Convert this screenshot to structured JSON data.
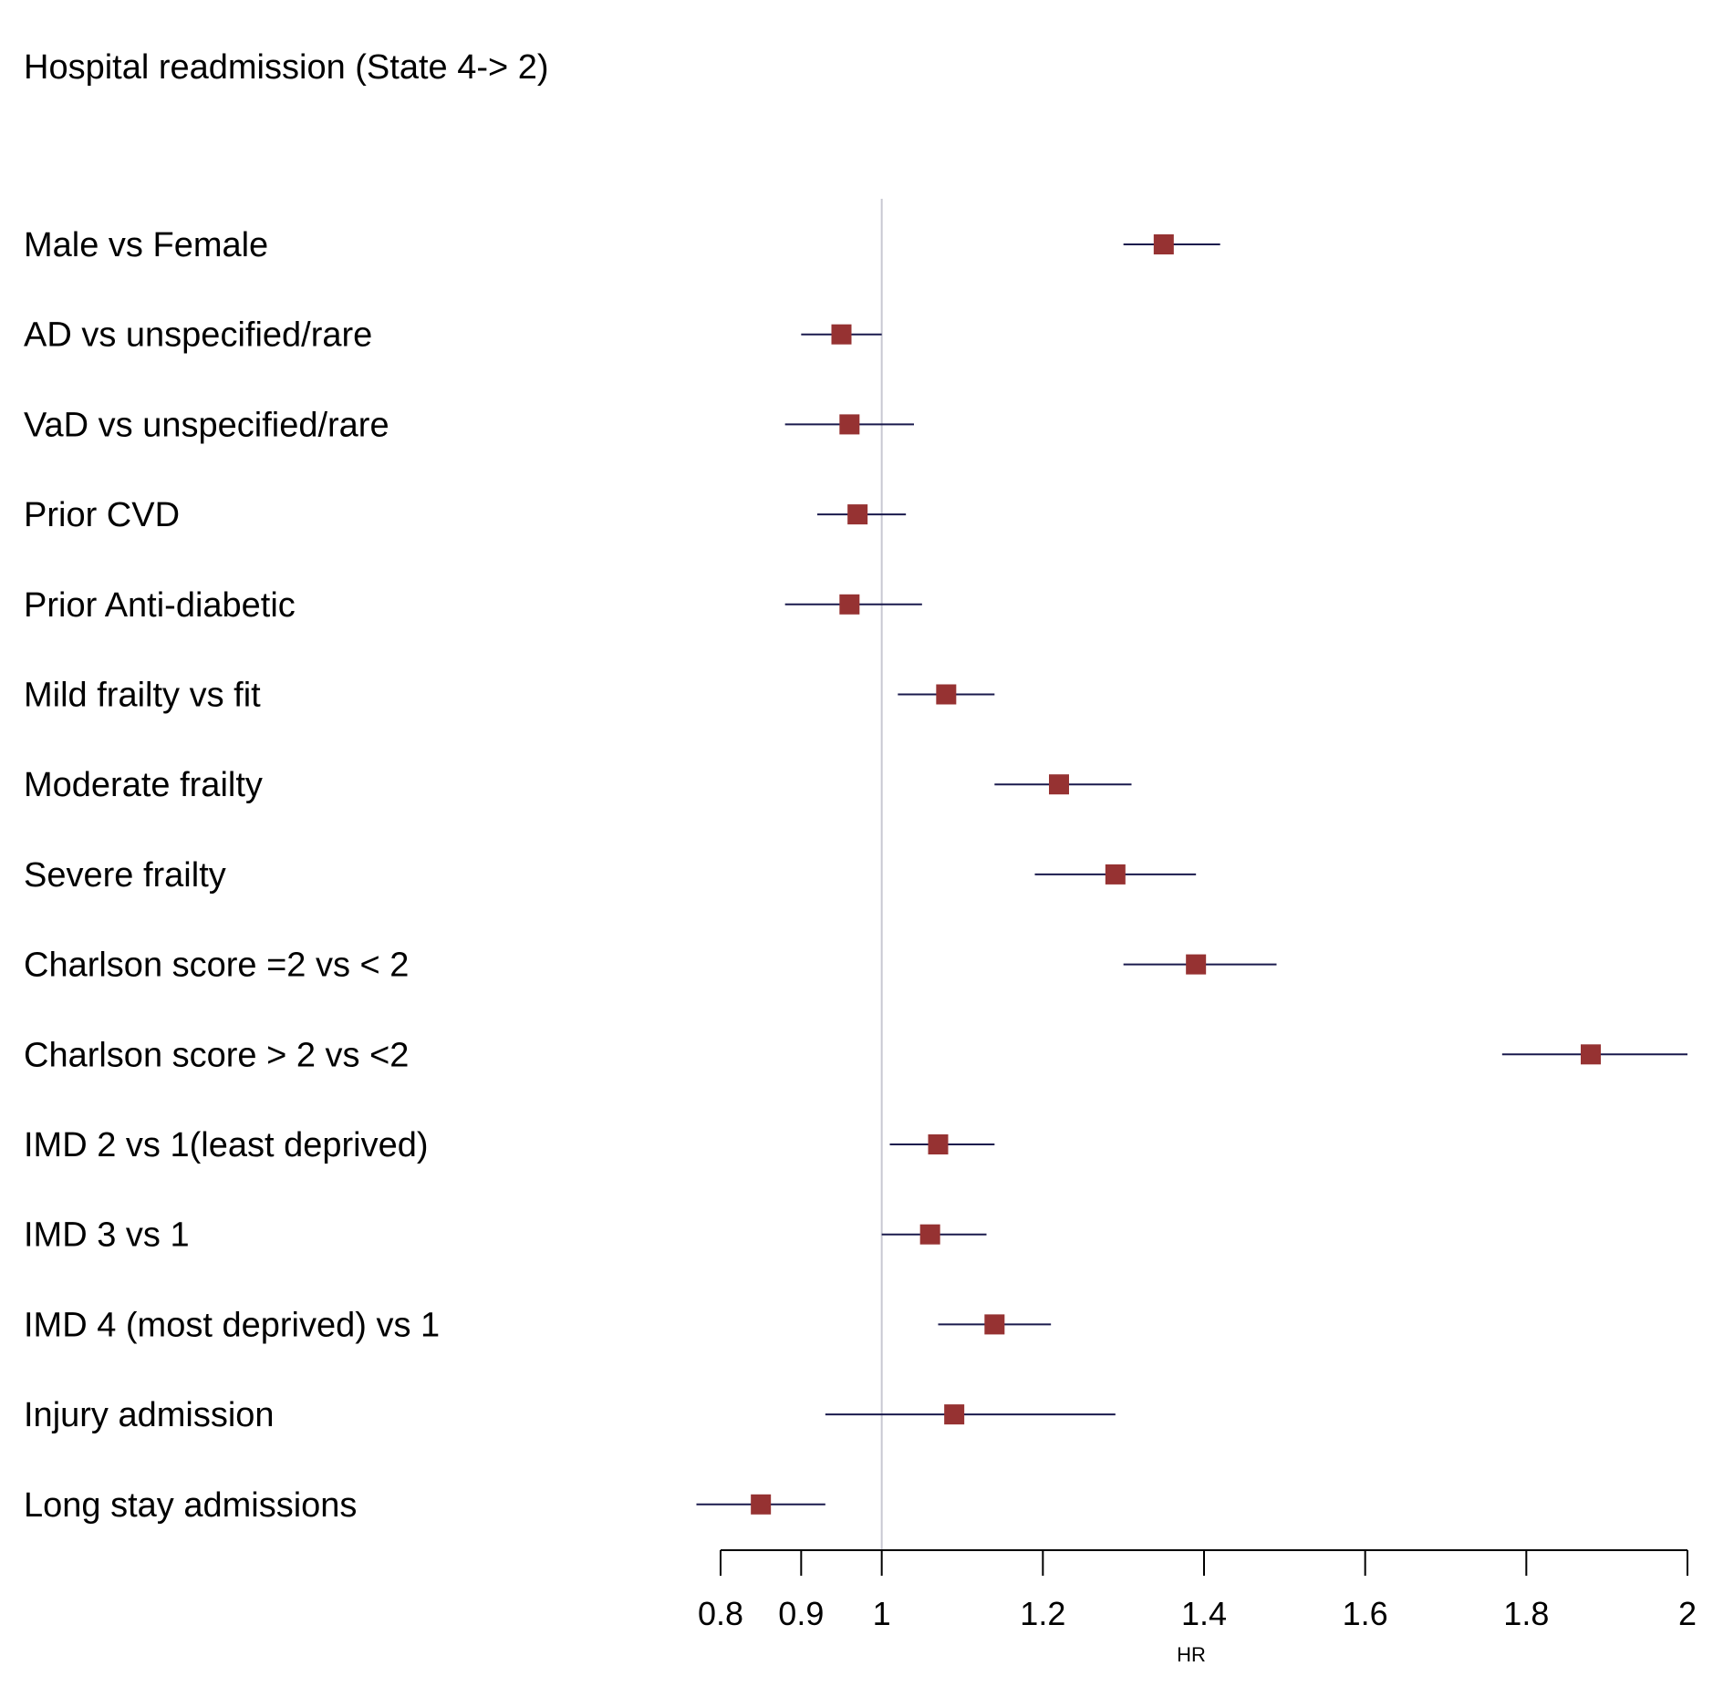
{
  "chart_data": {
    "type": "forest",
    "title": "Hospital readmission (State 4-> 2)",
    "xlabel": "HR",
    "ylabel": "",
    "xlim": [
      0.8,
      2.0
    ],
    "reference_line": 1,
    "xticks": [
      0.8,
      0.9,
      1,
      1.2,
      1.4,
      1.6,
      1.8,
      2
    ],
    "xtick_labels": [
      "0.8",
      "0.9",
      "1",
      "1.2",
      "1.4",
      "1.6",
      "1.8",
      "2"
    ],
    "rows": [
      {
        "label": "Male vs Female",
        "hr": 1.35,
        "lower": 1.3,
        "upper": 1.42
      },
      {
        "label": "AD vs unspecified/rare",
        "hr": 0.95,
        "lower": 0.9,
        "upper": 1.0
      },
      {
        "label": "VaD vs unspecified/rare",
        "hr": 0.96,
        "lower": 0.88,
        "upper": 1.04
      },
      {
        "label": "Prior CVD",
        "hr": 0.97,
        "lower": 0.92,
        "upper": 1.03
      },
      {
        "label": "Prior Anti-diabetic",
        "hr": 0.96,
        "lower": 0.88,
        "upper": 1.05
      },
      {
        "label": "Mild frailty vs fit",
        "hr": 1.08,
        "lower": 1.02,
        "upper": 1.14
      },
      {
        "label": "Moderate frailty",
        "hr": 1.22,
        "lower": 1.14,
        "upper": 1.31
      },
      {
        "label": "Severe frailty",
        "hr": 1.29,
        "lower": 1.19,
        "upper": 1.39
      },
      {
        "label": "Charlson score =2 vs < 2",
        "hr": 1.39,
        "lower": 1.3,
        "upper": 1.49
      },
      {
        "label": "Charlson score > 2 vs <2",
        "hr": 1.88,
        "lower": 1.77,
        "upper": 2.0
      },
      {
        "label": "IMD 2 vs 1(least deprived)",
        "hr": 1.07,
        "lower": 1.01,
        "upper": 1.14
      },
      {
        "label": "IMD 3 vs 1",
        "hr": 1.06,
        "lower": 1.0,
        "upper": 1.13
      },
      {
        "label": "IMD 4 (most deprived) vs 1",
        "hr": 1.14,
        "lower": 1.07,
        "upper": 1.21
      },
      {
        "label": "Injury admission",
        "hr": 1.09,
        "lower": 0.93,
        "upper": 1.29
      },
      {
        "label": "Long stay admissions",
        "hr": 0.85,
        "lower": 0.77,
        "upper": 0.93
      }
    ],
    "grid": false,
    "legend": "none",
    "colors": {
      "marker": "#963232",
      "ci_line": "#1a1a4d",
      "reference_line": "#c8c8d2",
      "axis": "#000000",
      "text": "#000000"
    }
  }
}
